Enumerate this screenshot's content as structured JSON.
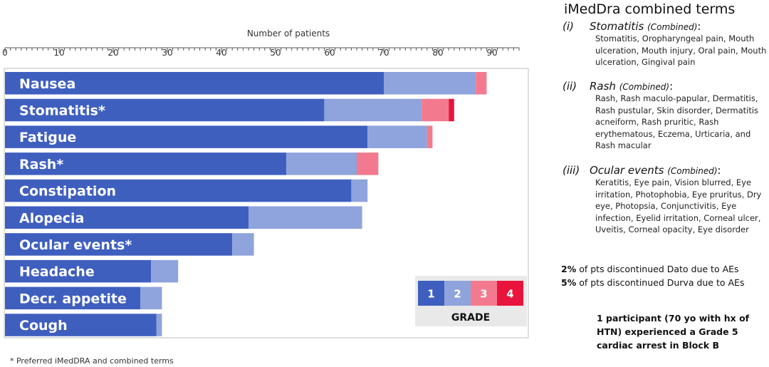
{
  "chart_data": {
    "type": "bar",
    "orientation": "horizontal",
    "stacked": true,
    "xlabel": "Number of patients",
    "xlim": [
      0,
      95
    ],
    "xticks": [
      0,
      10,
      20,
      30,
      40,
      50,
      60,
      70,
      80,
      90
    ],
    "categories": [
      "Nausea",
      "Stomatitis*",
      "Fatigue",
      "Rash*",
      "Constipation",
      "Alopecia",
      "Ocular events*",
      "Headache",
      "Decr. appetite",
      "Cough"
    ],
    "series": [
      {
        "name": "1",
        "color": "#3f5fbf",
        "values": [
          70,
          59,
          67,
          52,
          64,
          45,
          42,
          27,
          25,
          28
        ]
      },
      {
        "name": "2",
        "color": "#8fa3dc",
        "values": [
          17,
          18,
          11,
          13,
          3,
          21,
          4,
          5,
          4,
          1
        ]
      },
      {
        "name": "3",
        "color": "#f37a8e",
        "values": [
          2,
          5,
          1,
          4,
          0,
          0,
          0,
          0,
          0,
          0
        ]
      },
      {
        "name": "4",
        "color": "#e8143c",
        "values": [
          0,
          1,
          0,
          0,
          0,
          0,
          0,
          0,
          0,
          0
        ]
      }
    ],
    "legend": {
      "title": "GRADE",
      "entries": [
        "1",
        "2",
        "3",
        "4"
      ],
      "placement": "bottom-right"
    }
  },
  "footnote": "* Preferred iMedDRA and combined terms",
  "imeddra": {
    "title": "iMedDra combined terms",
    "groups": [
      {
        "num": "(i)",
        "name": "Stomatitis",
        "combined": "(Combined)",
        "suffix": ":",
        "terms": "Stomatitis, Oropharyngeal pain, Mouth ulceration, Mouth injury, Oral pain, Mouth ulceration, Gingival pain"
      },
      {
        "num": "(ii)",
        "name": "Rash",
        "combined": "(Combined)",
        "suffix": ":",
        "terms": "Rash, Rash maculo-papular, Dermatitis, Rash pustular,  Skin disorder, Dermatitis acneiform, Rash pruritic, Rash erythematous, Eczema, Urticaria, and Rash macular"
      },
      {
        "num": "(iii)",
        "name": "Ocular events",
        "combined": "(Combined)",
        "suffix": ":",
        "terms": "Keratitis, Eye pain, Vision blurred, Eye irritation, Photophobia, Eye pruritus, Dry eye, Photopsia, Conjunctivitis, Eye infection, Eyelid irritation, Corneal ulcer, Uveitis, Corneal opacity, Eye disorder"
      }
    ]
  },
  "discontinued": [
    {
      "pct": "2%",
      "text": " of pts discontinued Dato due to AEs"
    },
    {
      "pct": "5%",
      "text": " of pts discontinued Durva due to AEs"
    }
  ],
  "participant_note": "1 participant (70 yo with hx of HTN) experienced a Grade 5 cardiac arrest in Block B"
}
